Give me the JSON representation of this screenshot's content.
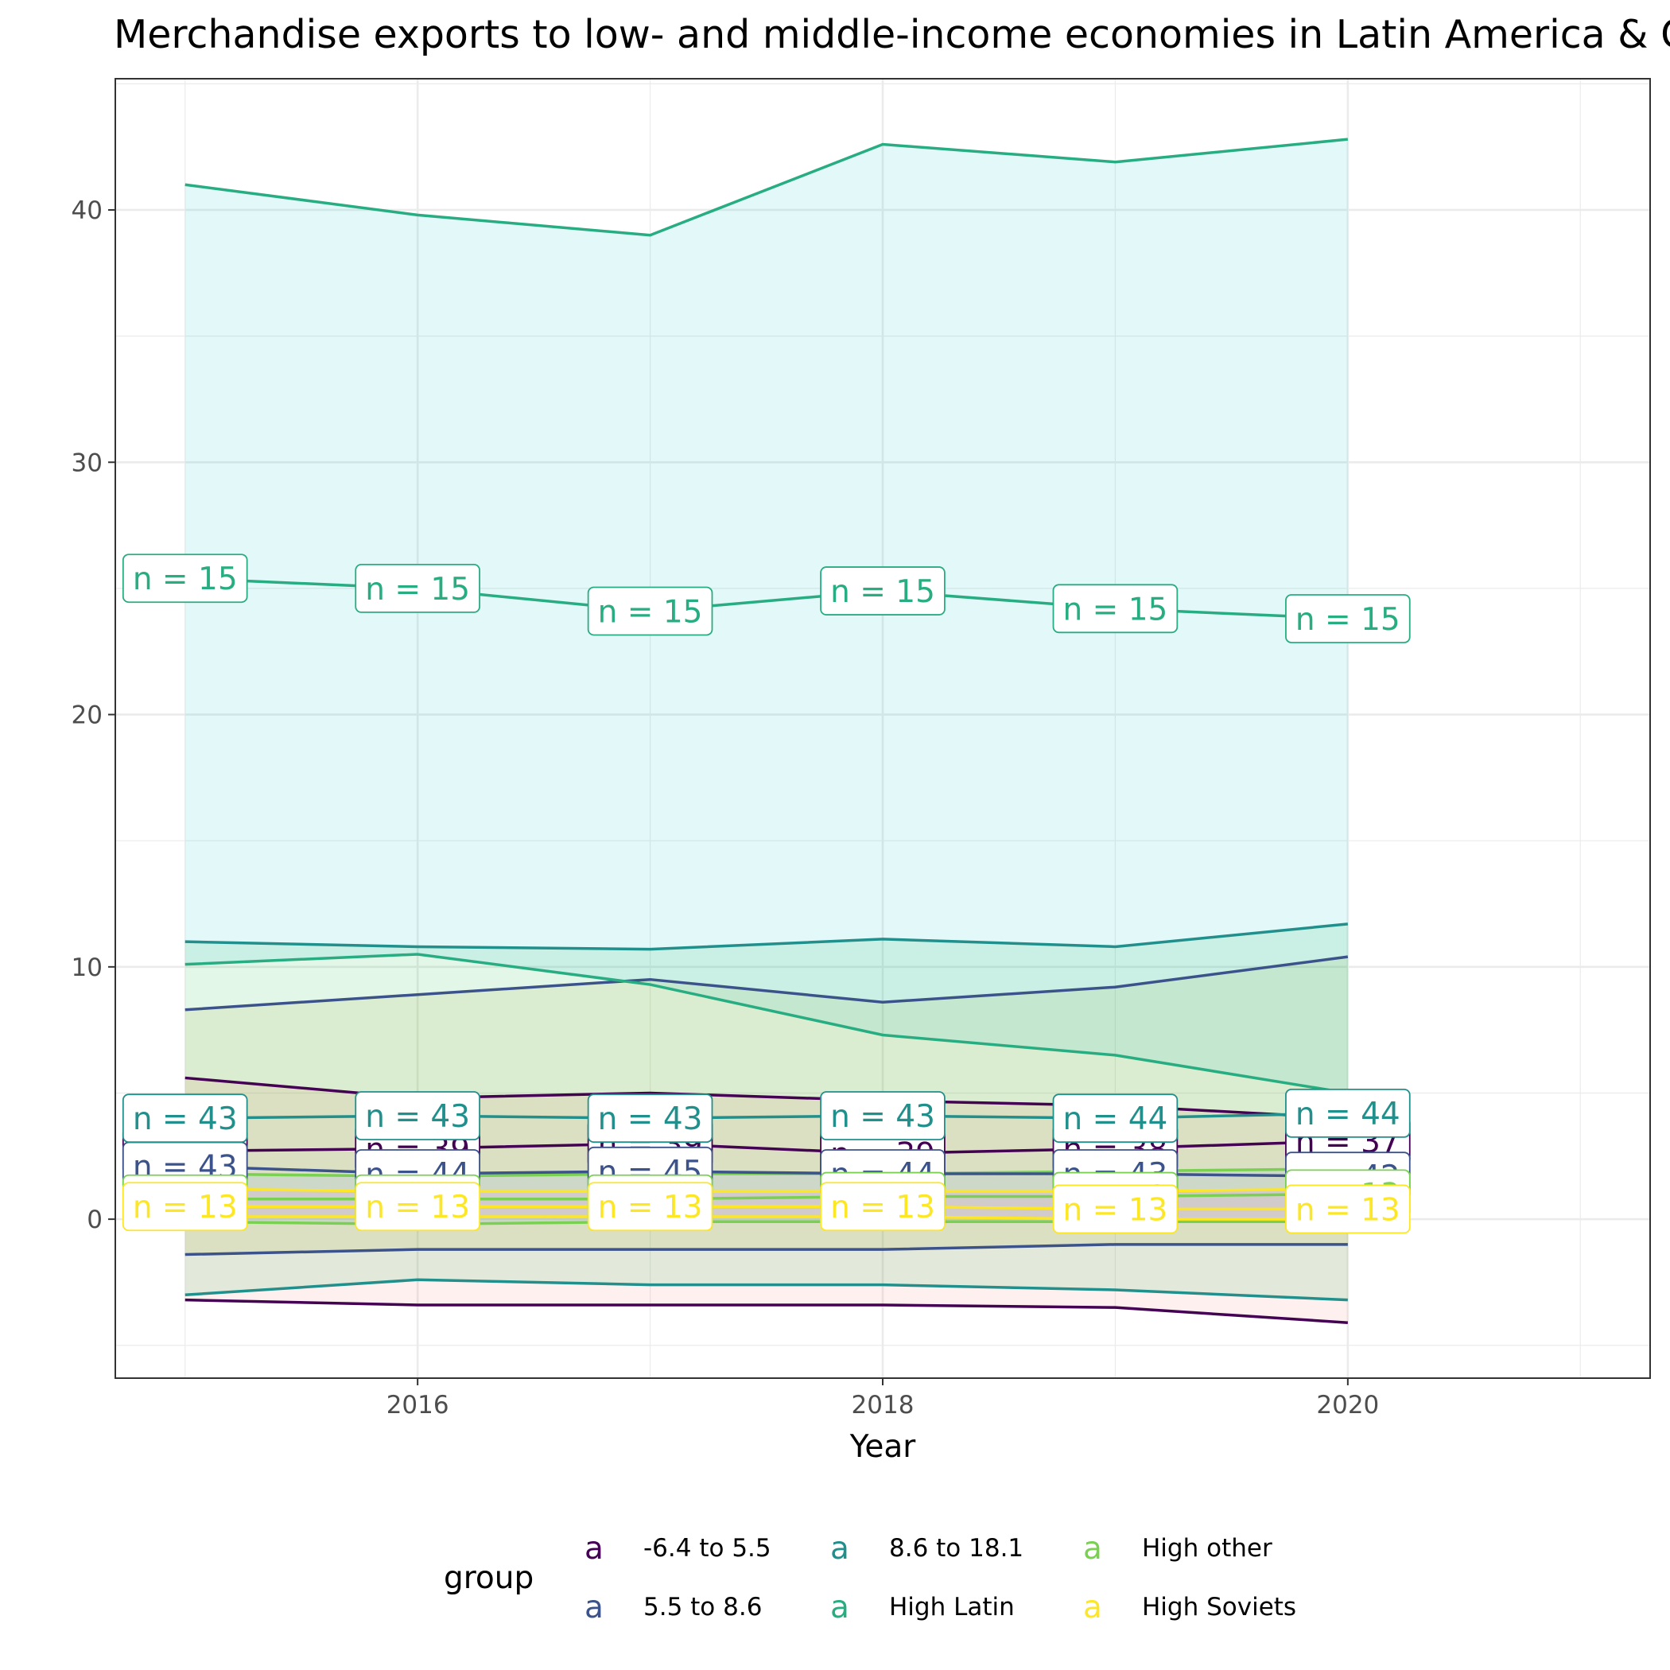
{
  "chart_data": {
    "type": "line",
    "title": "Merchandise exports to low- and middle-income economies in Latin America & Caribbean (% of total merchandise exports)",
    "xlabel": "Year",
    "ylabel": "",
    "x": [
      2015,
      2016,
      2017,
      2018,
      2019,
      2020
    ],
    "xlim": [
      2014.7,
      2021.3
    ],
    "ylim": [
      -6.3,
      45.2
    ],
    "x_ticks": [
      2016,
      2018,
      2020
    ],
    "x_tick_labels": [
      "2016",
      "2018",
      "2020"
    ],
    "y_ticks": [
      0,
      10,
      20,
      30,
      40
    ],
    "y_tick_labels": [
      "0",
      "10",
      "20",
      "30",
      "40"
    ],
    "grid": true,
    "legend_title": "group",
    "legend_position": "bottom",
    "legend_key_glyph": "a",
    "series": [
      {
        "name": "-6.4 to 5.5",
        "color": "#440154",
        "fill": "#f8766d",
        "median": [
          2.7,
          2.8,
          3.0,
          2.6,
          2.8,
          3.1
        ],
        "upper": [
          5.6,
          4.8,
          5.0,
          4.7,
          4.5,
          4.0
        ],
        "lower": [
          -3.2,
          -3.4,
          -3.4,
          -3.4,
          -3.5,
          -4.1
        ],
        "n": [
          39,
          39,
          39,
          39,
          38,
          37
        ]
      },
      {
        "name": "5.5 to 8.6",
        "color": "#3b528b",
        "fill": "#b79f00",
        "median": [
          2.1,
          1.8,
          1.9,
          1.8,
          1.8,
          1.7
        ],
        "upper": [
          8.3,
          8.9,
          9.5,
          8.6,
          9.2,
          10.4
        ],
        "lower": [
          -1.4,
          -1.2,
          -1.2,
          -1.2,
          -1.0,
          -1.0
        ],
        "n": [
          43,
          44,
          45,
          44,
          43,
          42
        ]
      },
      {
        "name": "8.6 to 18.1",
        "color": "#21908c",
        "fill": "#00ba38",
        "median": [
          4.0,
          4.1,
          4.0,
          4.1,
          4.0,
          4.2
        ],
        "upper": [
          11.0,
          10.8,
          10.7,
          11.1,
          10.8,
          11.7
        ],
        "lower": [
          -3.0,
          -2.4,
          -2.6,
          -2.6,
          -2.8,
          -3.2
        ],
        "n": [
          43,
          43,
          43,
          43,
          44,
          44
        ]
      },
      {
        "name": "High Latin",
        "color": "#27ad81",
        "fill": "#00bfc4",
        "median": [
          25.4,
          25.0,
          24.1,
          24.9,
          24.2,
          23.8
        ],
        "upper": [
          41.0,
          39.8,
          39.0,
          42.6,
          41.9,
          42.8
        ],
        "lower": [
          10.1,
          10.5,
          9.3,
          7.3,
          6.5,
          5.0
        ],
        "n": [
          15,
          15,
          15,
          15,
          15,
          15
        ]
      },
      {
        "name": "High other",
        "color": "#7ad151",
        "fill": "#619cff",
        "median": [
          0.8,
          0.8,
          0.8,
          0.9,
          0.9,
          1.0
        ],
        "upper": [
          1.8,
          1.7,
          1.8,
          1.8,
          1.9,
          2.0
        ],
        "lower": [
          -0.1,
          -0.2,
          -0.1,
          -0.1,
          -0.1,
          -0.1
        ],
        "n": [
          13,
          13,
          13,
          13,
          13,
          13
        ]
      },
      {
        "name": "High Soviets",
        "color": "#fde725",
        "fill": "#f564e3",
        "median": [
          0.5,
          0.5,
          0.5,
          0.5,
          0.4,
          0.4
        ],
        "upper": [
          1.2,
          1.1,
          1.1,
          1.1,
          1.1,
          1.2
        ],
        "lower": [
          0.1,
          0.1,
          0.1,
          0.1,
          0.0,
          0.0
        ],
        "n": [
          13,
          13,
          13,
          13,
          13,
          13
        ]
      }
    ]
  }
}
